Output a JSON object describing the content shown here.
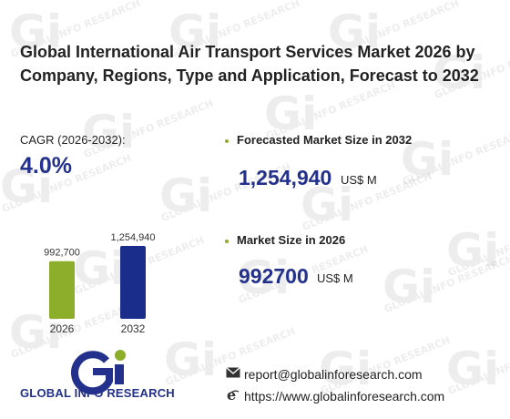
{
  "title": "Global International Air Transport Services Market 2026 by Company, Regions, Type and Application, Forecast to 2032",
  "cagr": {
    "label": "CAGR (2026-2032):",
    "value": "4.0%"
  },
  "forecast": {
    "label": "Forecasted Market Size in 2032",
    "value": "1,254,940",
    "unit": "US$ M"
  },
  "current": {
    "label": "Market Size in 2026",
    "value": "992700",
    "unit": "US$ M"
  },
  "chart_data": {
    "type": "bar",
    "categories": [
      "2026",
      "2032"
    ],
    "values": [
      992700,
      1254940
    ],
    "data_labels": [
      "992,700",
      "1,254,940"
    ],
    "colors": [
      "#8cae2a",
      "#1b2d8a"
    ],
    "ylim": [
      0,
      1254940
    ],
    "grid": false,
    "legend": "none"
  },
  "logo": {
    "text": "GLOBAL INFO RESEARCH",
    "mark": "Gi",
    "colors": {
      "blue": "#23318c",
      "green": "#8cae2a"
    }
  },
  "contact": {
    "email": "report@globalinforesearch.com",
    "website": "https://www.globalinforesearch.com",
    "email_icon": "envelope-icon",
    "web_icon": "internet-explorer-icon"
  },
  "watermark": {
    "mark": "Gi",
    "text": "GLOBAL INFO RESEARCH"
  }
}
